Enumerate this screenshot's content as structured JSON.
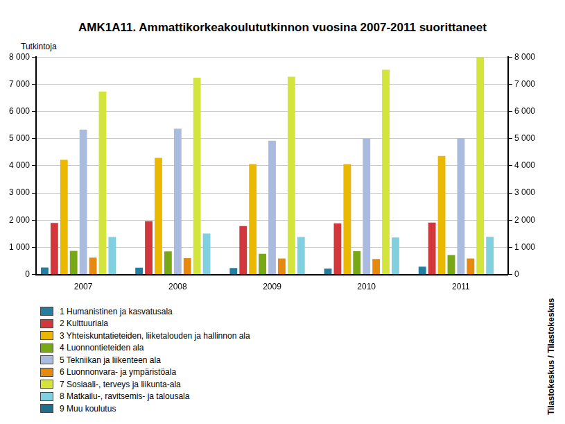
{
  "chart_data": {
    "type": "bar",
    "title": "AMK1A11. Ammattikorkeakoulututkinnon vuosina 2007-2011 suorittaneet",
    "y_label": "Tutkintoja",
    "source": "Tilastokeskus / Tilastokeskus",
    "categories": [
      "2007",
      "2008",
      "2009",
      "2010",
      "2011"
    ],
    "series": [
      {
        "name": "1 Humanistinen ja kasvatusala",
        "color": "#237ea0",
        "values": [
          260,
          250,
          240,
          220,
          290
        ]
      },
      {
        "name": "2 Kulttuuriala",
        "color": "#d2373c",
        "values": [
          1900,
          1960,
          1780,
          1880,
          1910
        ]
      },
      {
        "name": "3 Yhteiskuntatieteiden, liiketalouden ja hallinnon ala",
        "color": "#ebb800",
        "values": [
          4220,
          4290,
          4060,
          4060,
          4360
        ]
      },
      {
        "name": "4 Luonnontieteiden ala",
        "color": "#78a816",
        "values": [
          870,
          850,
          760,
          860,
          720
        ]
      },
      {
        "name": "5 Tekniikan ja liikenteen ala",
        "color": "#a9bce0",
        "values": [
          5330,
          5360,
          4920,
          5000,
          5020
        ]
      },
      {
        "name": "6 Luonnonvara- ja ympäristöala",
        "color": "#e8890f",
        "values": [
          620,
          600,
          590,
          570,
          590
        ]
      },
      {
        "name": "7 Sosiaali-, terveys ja liikunta-ala",
        "color": "#d3e43c",
        "values": [
          6730,
          7240,
          7280,
          7530,
          7990
        ]
      },
      {
        "name": "8 Matkailu-, ravitsemis- ja talousala",
        "color": "#80d0e0",
        "values": [
          1380,
          1510,
          1380,
          1360,
          1390
        ]
      },
      {
        "name": "9 Muu koulutus",
        "color": "#1d6f8c",
        "values": [
          0,
          0,
          0,
          0,
          0
        ]
      }
    ],
    "ylim": [
      0,
      8000
    ],
    "yticks": [
      0,
      {
        "value": 1000,
        "label": "1 000"
      },
      {
        "value": 2000,
        "label": "2 000"
      },
      {
        "value": 3000,
        "label": "3 000"
      },
      {
        "value": 4000,
        "label": "4 000"
      },
      {
        "value": 5000,
        "label": "5 000"
      },
      {
        "value": 6000,
        "label": "6 000"
      },
      {
        "value": 7000,
        "label": "7 000"
      },
      {
        "value": 8000,
        "label": "8 000"
      }
    ],
    "y2lim": [
      0,
      8000
    ],
    "y2ticks": [
      0,
      {
        "value": 1000,
        "label": "1 000"
      },
      {
        "value": 2000,
        "label": "2 000"
      },
      {
        "value": 3000,
        "label": "3 000"
      },
      {
        "value": 4000,
        "label": "4 000"
      },
      {
        "value": 5000,
        "label": "5 000"
      },
      {
        "value": 6000,
        "label": "6 000"
      },
      {
        "value": 7000,
        "label": "7 000"
      },
      {
        "value": 8000,
        "label": "8 000"
      }
    ],
    "grid": true,
    "legend": "bottom"
  }
}
